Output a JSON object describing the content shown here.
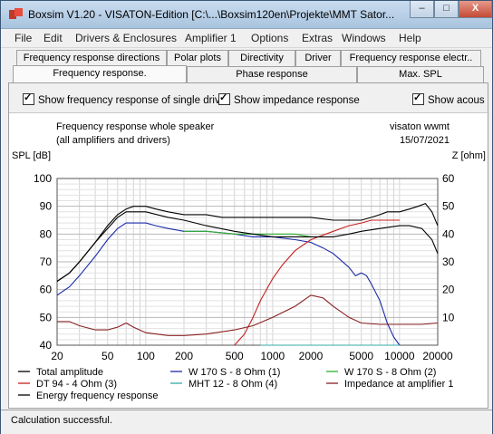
{
  "window": {
    "title": "Boxsim V1.20 - VISATON-Edition [C:\\...\\Boxsim120en\\Projekte\\MMT Sator...",
    "minimize_label": "–",
    "maximize_label": "□",
    "close_label": "X"
  },
  "menu": [
    "File",
    "Edit",
    "Drivers & Enclosures",
    "Amplifier 1",
    "Options",
    "Extras",
    "Windows",
    "Help"
  ],
  "tabs_row1": [
    "Frequency response directions",
    "Polar plots",
    "Directivity",
    "Driver",
    "Frequency response electr.."
  ],
  "tabs_row2": [
    "Frequency response.",
    "Phase response",
    "Max. SPL"
  ],
  "active_tab": "Frequency response.",
  "options": {
    "single_drive": "Show frequency response of single drive",
    "impedance": "Show impedance response",
    "acoustic": "Show acous"
  },
  "chart_header": {
    "title_line1": "Frequency response whole speaker",
    "title_line2": "(all amplifiers and drivers)",
    "author": "visaton wwmt",
    "date": "15/07/2021"
  },
  "chart_data": {
    "type": "line",
    "x_scale": "log",
    "xlim": [
      20,
      20000
    ],
    "x_ticks": [
      "20",
      "50",
      "100",
      "200",
      "500",
      "1000",
      "2000",
      "5000",
      "10000",
      "20000"
    ],
    "x_tick_values": [
      20,
      50,
      100,
      200,
      500,
      1000,
      2000,
      5000,
      10000,
      20000
    ],
    "ylabel": "SPL [dB]",
    "ylim": [
      40,
      100
    ],
    "y_ticks": [
      "40",
      "50",
      "60",
      "70",
      "80",
      "90",
      "100"
    ],
    "y2label": "Z [ohm]",
    "y2lim": [
      0,
      60
    ],
    "y2_ticks": [
      "10",
      "20",
      "30",
      "40",
      "50",
      "60"
    ],
    "grid": true,
    "series": [
      {
        "name": "Total amplitude",
        "color": "#000000",
        "axis": "left",
        "x": [
          20,
          25,
          30,
          40,
          50,
          60,
          70,
          80,
          100,
          120,
          150,
          200,
          300,
          400,
          500,
          700,
          1000,
          1500,
          2000,
          3000,
          4000,
          5000,
          6000,
          7000,
          8000,
          10000,
          12000,
          14000,
          16000,
          18000,
          20000
        ],
        "y": [
          63,
          66,
          70,
          77,
          83,
          87,
          89,
          90,
          90,
          89,
          88,
          87,
          87,
          86,
          86,
          86,
          86,
          86,
          86,
          85,
          85,
          85,
          86,
          87,
          88,
          88,
          89,
          90,
          91,
          88,
          83
        ]
      },
      {
        "name": "W 170 S - 8 Ohm (1)",
        "color": "#1a2aa8",
        "axis": "left",
        "x": [
          20,
          25,
          30,
          40,
          50,
          60,
          70,
          80,
          100,
          120,
          150,
          200,
          300,
          500,
          700,
          1000,
          1500,
          2000,
          2500,
          3000,
          4000,
          4500,
          5000,
          5500,
          6000,
          7000,
          8000,
          9000,
          10000
        ],
        "y": [
          58,
          61,
          65,
          72,
          78,
          82,
          84,
          84,
          84,
          83,
          82,
          81,
          81,
          80,
          79,
          79,
          78,
          77,
          75,
          73,
          68,
          65,
          66,
          65,
          62,
          56,
          48,
          43,
          40
        ]
      },
      {
        "name": "W 170 S - 8 Ohm (2)",
        "color": "#30b030",
        "axis": "left",
        "x": [
          200,
          300,
          500,
          700,
          1000,
          1500,
          2000
        ],
        "y": [
          81,
          81,
          80,
          80,
          80,
          80,
          79
        ]
      },
      {
        "name": "DT 94 - 4 Ohm (3)",
        "color": "#c81e1e",
        "axis": "left",
        "x": [
          500,
          600,
          700,
          800,
          1000,
          1200,
          1500,
          2000,
          3000,
          4000,
          5000,
          6000,
          8000,
          10000
        ],
        "y": [
          40,
          44,
          50,
          56,
          64,
          69,
          74,
          78,
          81,
          83,
          84,
          85,
          85,
          85
        ]
      },
      {
        "name": "MHT 12 - 8 Ohm (4)",
        "color": "#35a8a8",
        "axis": "left",
        "x": [
          800,
          1000,
          2000,
          5000,
          10000
        ],
        "y": [
          40,
          40,
          40,
          40,
          40
        ]
      },
      {
        "name": "Impedance at amplifier 1",
        "color": "#8a2020",
        "axis": "right",
        "x": [
          20,
          25,
          30,
          40,
          50,
          60,
          70,
          80,
          100,
          150,
          200,
          300,
          500,
          700,
          1000,
          1500,
          2000,
          2500,
          3000,
          4000,
          5000,
          7000,
          10000,
          15000,
          20000
        ],
        "y": [
          8.5,
          8.5,
          7,
          5.5,
          5.5,
          6.5,
          8,
          6.5,
          4.5,
          3.5,
          3.5,
          4,
          5.5,
          7,
          10,
          14,
          18,
          17,
          14,
          10,
          8,
          7.5,
          7.5,
          7.5,
          8
        ]
      },
      {
        "name": "Energy frequency response",
        "color": "#000000",
        "axis": "left",
        "x": [
          20,
          25,
          30,
          40,
          50,
          60,
          70,
          80,
          100,
          150,
          200,
          300,
          500,
          700,
          1000,
          1500,
          2000,
          3000,
          4000,
          5000,
          7000,
          10000,
          12000,
          15000,
          18000,
          20000
        ],
        "y": [
          63,
          66,
          70,
          77,
          82,
          86,
          88,
          88,
          88,
          86,
          85,
          83,
          81,
          80,
          79,
          79,
          79,
          79,
          80,
          81,
          82,
          83,
          83,
          82,
          78,
          73
        ]
      }
    ]
  },
  "legend": [
    {
      "label": "Total amplitude",
      "color": "#000000"
    },
    {
      "label": "W 170 S - 8 Ohm (1)",
      "color": "#1a2aa8"
    },
    {
      "label": "W 170 S - 8 Ohm (2)",
      "color": "#30b030"
    },
    {
      "label": "DT 94 - 4 Ohm (3)",
      "color": "#c81e1e"
    },
    {
      "label": "MHT 12 - 8 Ohm (4)",
      "color": "#35a8a8"
    },
    {
      "label": "Impedance at amplifier 1",
      "color": "#8a2020"
    },
    {
      "label": "Energy frequency response",
      "color": "#000000"
    }
  ],
  "status": "Calculation successful."
}
